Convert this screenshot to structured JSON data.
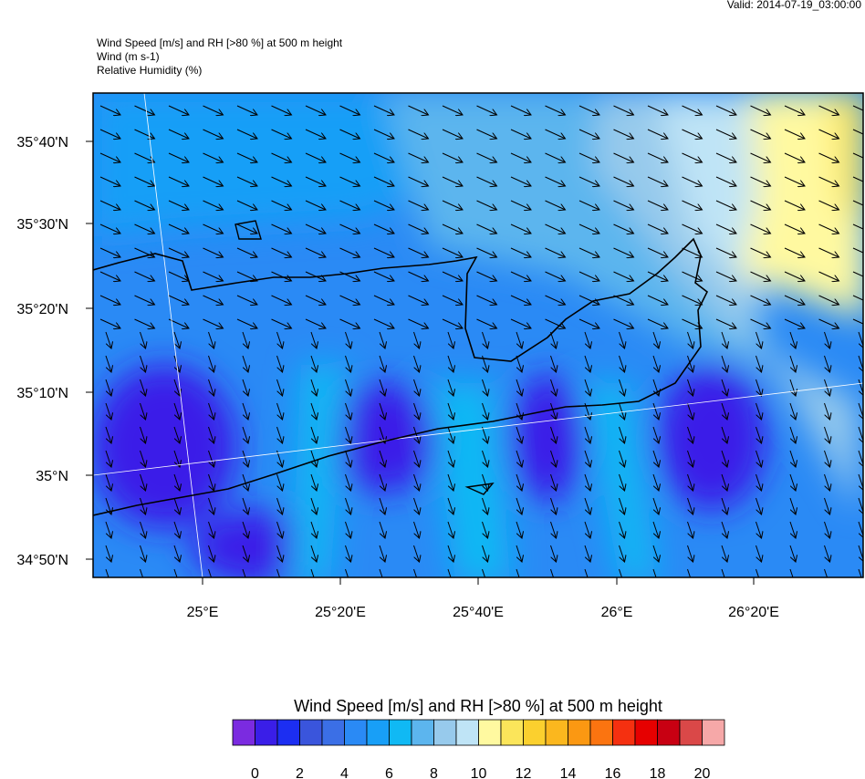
{
  "header": {
    "valid": "Valid: 2014-07-19_03:00:00",
    "lines": [
      "Wind Speed [m/s] and RH [>80 %] at 500 m height",
      "Wind   (m s-1)",
      "Relative Humidity   (%)"
    ]
  },
  "map": {
    "lat_labels": [
      "35°40'N",
      "35°30'N",
      "35°20'N",
      "35°10'N",
      "35°N",
      "34°50'N"
    ],
    "lon_labels": [
      "25°E",
      "25°20'E",
      "25°40'E",
      "26°E",
      "26°20'E"
    ]
  },
  "colorbar": {
    "title": "Wind Speed [m/s] and RH [>80 %] at 500 m height",
    "colors": [
      "#7b2be0",
      "#3a1ee8",
      "#1c2ef2",
      "#3a55dc",
      "#3b6fe6",
      "#2a8af5",
      "#189ff7",
      "#10b9f4",
      "#5cb5ee",
      "#97caec",
      "#bfe4f6",
      "#fff9a0",
      "#fbe55a",
      "#fbd02e",
      "#fbb71e",
      "#fb9812",
      "#fb7410",
      "#f53010",
      "#e60000",
      "#c80012",
      "#da4848",
      "#f6a8a8"
    ],
    "ticks": [
      0,
      2,
      4,
      6,
      8,
      10,
      12,
      14,
      16,
      18,
      20
    ]
  }
}
